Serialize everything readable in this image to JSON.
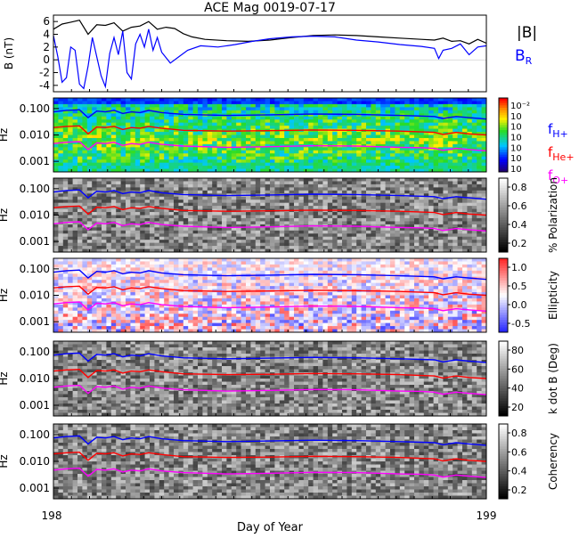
{
  "chart_data": {
    "type": "line",
    "title": "ACE Mag 0019-07-17",
    "xlabel": "Day of Year",
    "x_ticks": [
      "198",
      "199"
    ],
    "xlim": [
      198,
      199
    ],
    "colors": {
      "black": "#000000",
      "blue": "#0000ff",
      "red": "#ff0000",
      "magenta": "#ff00ff"
    },
    "panels": [
      {
        "id": "field",
        "ylabel": "B (nT)",
        "ylim": [
          -5,
          7
        ],
        "yticks": [
          "6",
          "4",
          "2",
          "0",
          "-2",
          "-4"
        ],
        "legend": [
          {
            "text": "|B|",
            "color": "#000000"
          },
          {
            "text": "B",
            "sub": "R",
            "color": "#0000ff"
          }
        ],
        "series": [
          {
            "name": "|B|",
            "color": "#000000",
            "x": [
              198.0,
              198.02,
              198.04,
              198.06,
              198.08,
              198.1,
              198.12,
              198.14,
              198.16,
              198.18,
              198.2,
              198.22,
              198.24,
              198.26,
              198.28,
              198.3,
              198.32,
              198.35,
              198.4,
              198.45,
              198.5,
              198.55,
              198.6,
              198.65,
              198.7,
              198.75,
              198.8,
              198.85,
              198.88,
              198.9,
              198.92,
              198.94,
              198.96,
              198.98,
              199.0
            ],
            "y": [
              4.8,
              5.6,
              5.9,
              6.2,
              4.0,
              5.5,
              5.4,
              5.8,
              4.5,
              5.1,
              5.3,
              6.0,
              4.8,
              5.1,
              4.9,
              4.1,
              3.6,
              3.2,
              3.0,
              2.9,
              3.1,
              3.5,
              3.8,
              3.9,
              3.8,
              3.6,
              3.4,
              3.2,
              3.1,
              3.4,
              2.9,
              3.0,
              2.5,
              3.2,
              2.6
            ]
          },
          {
            "name": "B",
            "color": "#0000ff",
            "x": [
              198.0,
              198.01,
              198.02,
              198.03,
              198.04,
              198.05,
              198.06,
              198.07,
              198.08,
              198.09,
              198.1,
              198.11,
              198.12,
              198.13,
              198.14,
              198.15,
              198.16,
              198.17,
              198.18,
              198.19,
              198.2,
              198.21,
              198.22,
              198.23,
              198.24,
              198.25,
              198.27,
              198.29,
              198.31,
              198.34,
              198.38,
              198.42,
              198.46,
              198.5,
              198.55,
              198.6,
              198.65,
              198.7,
              198.75,
              198.8,
              198.85,
              198.88,
              198.89,
              198.9,
              198.92,
              198.94,
              198.96,
              198.98,
              199.0
            ],
            "y": [
              3.8,
              0.5,
              -3.5,
              -2.8,
              2.0,
              1.5,
              -3.8,
              -4.5,
              -1.0,
              3.5,
              0.5,
              -2.5,
              -4.2,
              1.0,
              3.5,
              0.8,
              4.5,
              -2.0,
              -3.0,
              2.5,
              4.0,
              2.0,
              4.8,
              1.5,
              3.5,
              1.2,
              -0.5,
              0.5,
              1.5,
              2.2,
              2.0,
              2.4,
              2.9,
              3.3,
              3.6,
              3.7,
              3.6,
              3.1,
              2.8,
              2.4,
              2.1,
              1.8,
              0.2,
              1.5,
              1.8,
              2.5,
              0.8,
              2.0,
              2.2
            ]
          }
        ]
      },
      {
        "id": "power",
        "ylabel": "Hz",
        "yticks": [
          "0.100",
          "0.010",
          "0.001"
        ],
        "ylim_log10": [
          -3.4,
          -0.6
        ],
        "colorbar": {
          "type": "rainbow",
          "labels": [
            "10⁻²",
            "10",
            "10",
            "10",
            "10",
            "10",
            "10"
          ]
        },
        "legend": [
          {
            "text": "f",
            "sub": "H+",
            "color": "#0000ff"
          },
          {
            "text": "f",
            "sub": "He+",
            "color": "#ff0000"
          },
          {
            "text": "f",
            "sub": "O+",
            "color": "#ff00ff"
          }
        ]
      },
      {
        "id": "polarization",
        "ylabel": "Hz",
        "yticks": [
          "0.100",
          "0.010",
          "0.001"
        ],
        "ylim_log10": [
          -3.4,
          -0.6
        ],
        "colorbar": {
          "type": "gray",
          "label": "% Polarization",
          "ticks": [
            "0.8",
            "0.6",
            "0.4",
            "0.2"
          ]
        }
      },
      {
        "id": "ellipticity",
        "ylabel": "Hz",
        "yticks": [
          "0.100",
          "0.010",
          "0.001"
        ],
        "ylim_log10": [
          -3.4,
          -0.6
        ],
        "colorbar": {
          "type": "bwr",
          "label": "Ellipticity",
          "ticks": [
            "1.0",
            "0.5",
            "0.0",
            "-0.5"
          ]
        }
      },
      {
        "id": "kdotb",
        "ylabel": "Hz",
        "yticks": [
          "0.100",
          "0.010",
          "0.001"
        ],
        "ylim_log10": [
          -3.4,
          -0.6
        ],
        "colorbar": {
          "type": "gray",
          "label": "k dot B (Deg)",
          "ticks": [
            "80",
            "60",
            "40",
            "20"
          ]
        }
      },
      {
        "id": "coherency",
        "ylabel": "Hz",
        "yticks": [
          "0.100",
          "0.010",
          "0.001"
        ],
        "ylim_log10": [
          -3.4,
          -0.6
        ],
        "colorbar": {
          "type": "gray",
          "label": "Coherency",
          "ticks": [
            "0.8",
            "0.6",
            "0.4",
            "0.2"
          ]
        }
      }
    ],
    "gyrofrequency_lines": {
      "x": [
        198.0,
        198.03,
        198.06,
        198.08,
        198.1,
        198.12,
        198.14,
        198.16,
        198.18,
        198.2,
        198.22,
        198.25,
        198.3,
        198.4,
        198.5,
        198.6,
        198.7,
        198.8,
        198.85,
        198.88,
        198.9,
        198.93,
        198.96,
        199.0
      ],
      "fH": [
        0.075,
        0.085,
        0.09,
        0.045,
        0.08,
        0.075,
        0.085,
        0.065,
        0.075,
        0.07,
        0.085,
        0.07,
        0.06,
        0.055,
        0.058,
        0.062,
        0.06,
        0.055,
        0.052,
        0.05,
        0.042,
        0.05,
        0.045,
        0.04
      ],
      "fHe": [
        0.019,
        0.021,
        0.022,
        0.011,
        0.02,
        0.019,
        0.021,
        0.016,
        0.019,
        0.018,
        0.021,
        0.018,
        0.015,
        0.014,
        0.0145,
        0.0155,
        0.015,
        0.014,
        0.013,
        0.0125,
        0.0105,
        0.0125,
        0.011,
        0.01
      ],
      "fO": [
        0.0047,
        0.0053,
        0.0056,
        0.0028,
        0.005,
        0.0047,
        0.0053,
        0.004,
        0.0047,
        0.0044,
        0.0053,
        0.0044,
        0.0038,
        0.0034,
        0.0036,
        0.0039,
        0.0038,
        0.0034,
        0.0033,
        0.0031,
        0.0026,
        0.0031,
        0.0028,
        0.0025
      ]
    }
  }
}
